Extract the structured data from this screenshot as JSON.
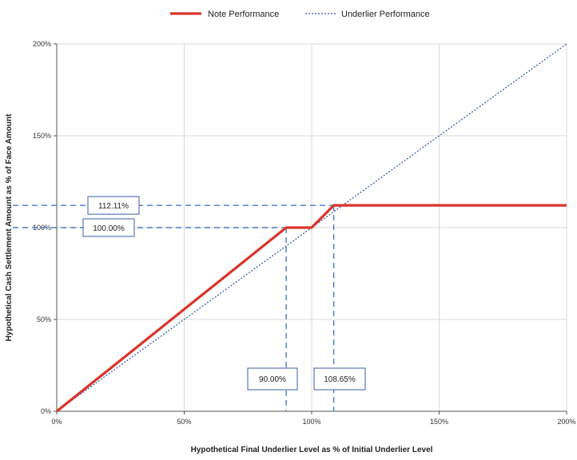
{
  "chart_data": {
    "type": "line",
    "title": "",
    "xlabel": "Hypothetical Final Underlier Level as % of Initial Underlier Level",
    "ylabel": "Hypothetical Cash Settlement Amount as % of Face Amount",
    "xlim": [
      0,
      200
    ],
    "ylim": [
      0,
      200
    ],
    "x_ticks": [
      "0%",
      "50%",
      "100%",
      "150%",
      "200%"
    ],
    "y_ticks": [
      "0%",
      "50%",
      "100%",
      "150%",
      "200%"
    ],
    "grid": true,
    "legend_position": "top",
    "series": [
      {
        "name": "Note Performance",
        "style": "solid",
        "color": "#d9352a",
        "points": [
          [
            0,
            0
          ],
          [
            90,
            100
          ],
          [
            100,
            100
          ],
          [
            108.65,
            112.11
          ],
          [
            200,
            112.11
          ]
        ]
      },
      {
        "name": "Underlier Performance",
        "style": "dotted",
        "color": "#3b5ea8",
        "points": [
          [
            0,
            0
          ],
          [
            200,
            200
          ]
        ]
      }
    ],
    "annotations": [
      {
        "axis": "y",
        "value": 112.11,
        "label": "112.11%",
        "line_to_x": 108.65
      },
      {
        "axis": "y",
        "value": 100,
        "label": "100.00%",
        "line_to_x": 90
      },
      {
        "axis": "x",
        "value": 90,
        "label": "90.00%",
        "line_to_y": 100
      },
      {
        "axis": "x",
        "value": 108.65,
        "label": "108.65%",
        "line_to_y": 112.11
      }
    ]
  }
}
